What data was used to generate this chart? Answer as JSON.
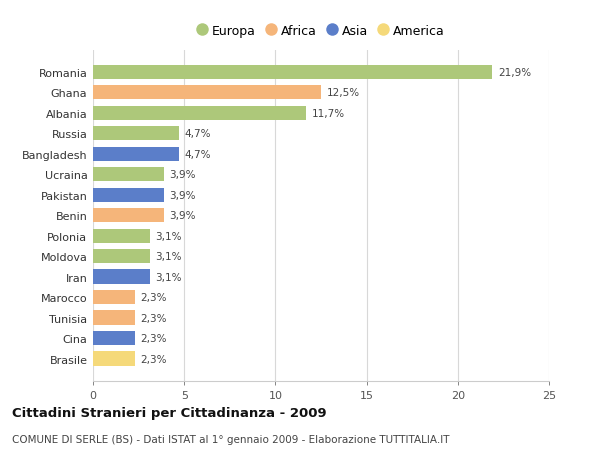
{
  "countries": [
    "Romania",
    "Ghana",
    "Albania",
    "Russia",
    "Bangladesh",
    "Ucraina",
    "Pakistan",
    "Benin",
    "Polonia",
    "Moldova",
    "Iran",
    "Marocco",
    "Tunisia",
    "Cina",
    "Brasile"
  ],
  "values": [
    21.9,
    12.5,
    11.7,
    4.7,
    4.7,
    3.9,
    3.9,
    3.9,
    3.1,
    3.1,
    3.1,
    2.3,
    2.3,
    2.3,
    2.3
  ],
  "labels": [
    "21,9%",
    "12,5%",
    "11,7%",
    "4,7%",
    "4,7%",
    "3,9%",
    "3,9%",
    "3,9%",
    "3,1%",
    "3,1%",
    "3,1%",
    "2,3%",
    "2,3%",
    "2,3%",
    "2,3%"
  ],
  "continents": [
    "Europa",
    "Africa",
    "Europa",
    "Europa",
    "Asia",
    "Europa",
    "Asia",
    "Africa",
    "Europa",
    "Europa",
    "Asia",
    "Africa",
    "Africa",
    "Asia",
    "America"
  ],
  "continent_colors": {
    "Europa": "#adc87a",
    "Africa": "#f5b57a",
    "Asia": "#5b7ec9",
    "America": "#f5d97a"
  },
  "legend_order": [
    "Europa",
    "Africa",
    "Asia",
    "America"
  ],
  "xlim": [
    0,
    25
  ],
  "xticks": [
    0,
    5,
    10,
    15,
    20,
    25
  ],
  "title": "Cittadini Stranieri per Cittadinanza - 2009",
  "subtitle": "COMUNE DI SERLE (BS) - Dati ISTAT al 1° gennaio 2009 - Elaborazione TUTTITALIA.IT",
  "bg_color": "#ffffff",
  "grid_color": "#d8d8d8",
  "bar_height": 0.7
}
